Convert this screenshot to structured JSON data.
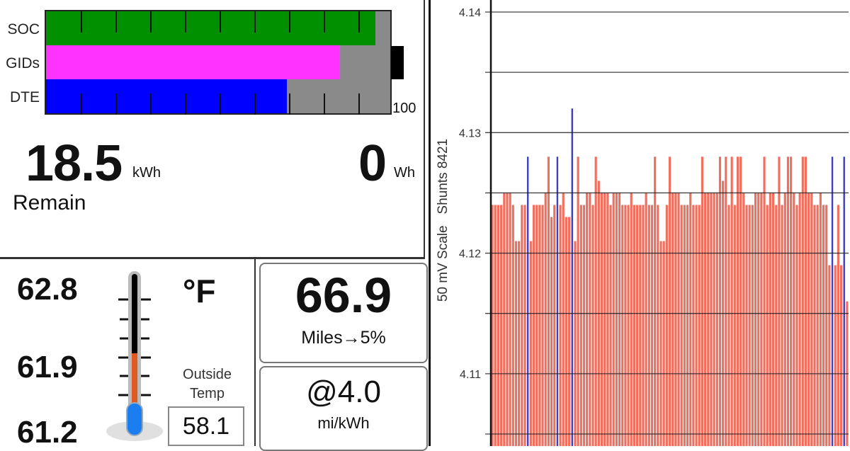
{
  "battery_gauge": {
    "rows": [
      {
        "label": "SOC",
        "percent": 95.6,
        "color": "#009000"
      },
      {
        "label": "GIDs",
        "percent": 85.1,
        "color": "#ff33ff"
      },
      {
        "label": "DTE",
        "percent": 70.0,
        "color": "#0000ff"
      }
    ],
    "scale_max_label": "100",
    "empty_color": "#8a8a8a"
  },
  "energy": {
    "remain_value": "18.5",
    "remain_unit": "kWh",
    "remain_label": "Remain",
    "used_value": "0",
    "used_unit": "Wh"
  },
  "temperature": {
    "pack_high": "62.8",
    "pack_mid": "61.9",
    "pack_low": "61.2",
    "unit": "°F",
    "outside_label": "Outside Temp",
    "outside_value": "58.1",
    "thermometer_fill_percent": 45
  },
  "range": {
    "miles_value": "66.9",
    "miles_label": "Miles→5%",
    "efficiency_value": "@4.0",
    "efficiency_unit": "mi/kWh"
  },
  "chart_data": {
    "type": "bar",
    "ylabel": "50 mV Scale   Shunts 8421",
    "ylim": [
      4.104,
      4.141
    ],
    "yticks": [
      4.14,
      4.13,
      4.12,
      4.11
    ],
    "grid_step": 0.005,
    "grid": true,
    "series_color": "#f07060",
    "shunt_color": "#4040c0",
    "shunt_cells": [
      12,
      22,
      27,
      115,
      119
    ],
    "values": [
      4.124,
      4.124,
      4.124,
      4.124,
      4.125,
      4.125,
      4.125,
      4.124,
      4.121,
      4.121,
      4.124,
      4.124,
      4.128,
      4.121,
      4.124,
      4.124,
      4.124,
      4.124,
      4.125,
      4.128,
      4.123,
      4.124,
      4.128,
      4.124,
      4.125,
      4.123,
      4.123,
      4.132,
      4.121,
      4.128,
      4.124,
      4.124,
      4.125,
      4.125,
      4.124,
      4.128,
      4.126,
      4.125,
      4.125,
      4.125,
      4.124,
      4.125,
      4.125,
      4.125,
      4.124,
      4.124,
      4.124,
      4.125,
      4.124,
      4.124,
      4.124,
      4.124,
      4.125,
      4.124,
      4.124,
      4.128,
      4.124,
      4.121,
      4.121,
      4.124,
      4.128,
      4.125,
      4.125,
      4.125,
      4.124,
      4.124,
      4.124,
      4.125,
      4.124,
      4.124,
      4.124,
      4.128,
      4.125,
      4.125,
      4.125,
      4.125,
      4.125,
      4.128,
      4.126,
      4.128,
      4.124,
      4.128,
      4.124,
      4.128,
      4.128,
      4.125,
      4.124,
      4.124,
      4.124,
      4.125,
      4.125,
      4.125,
      4.128,
      4.124,
      4.125,
      4.125,
      4.124,
      4.128,
      4.124,
      4.125,
      4.128,
      4.128,
      4.125,
      4.124,
      4.125,
      4.128,
      4.128,
      4.125,
      4.125,
      4.124,
      4.124,
      4.125,
      4.124,
      4.124,
      4.119,
      4.128,
      4.119,
      4.124,
      4.119,
      4.128,
      4.116
    ]
  }
}
